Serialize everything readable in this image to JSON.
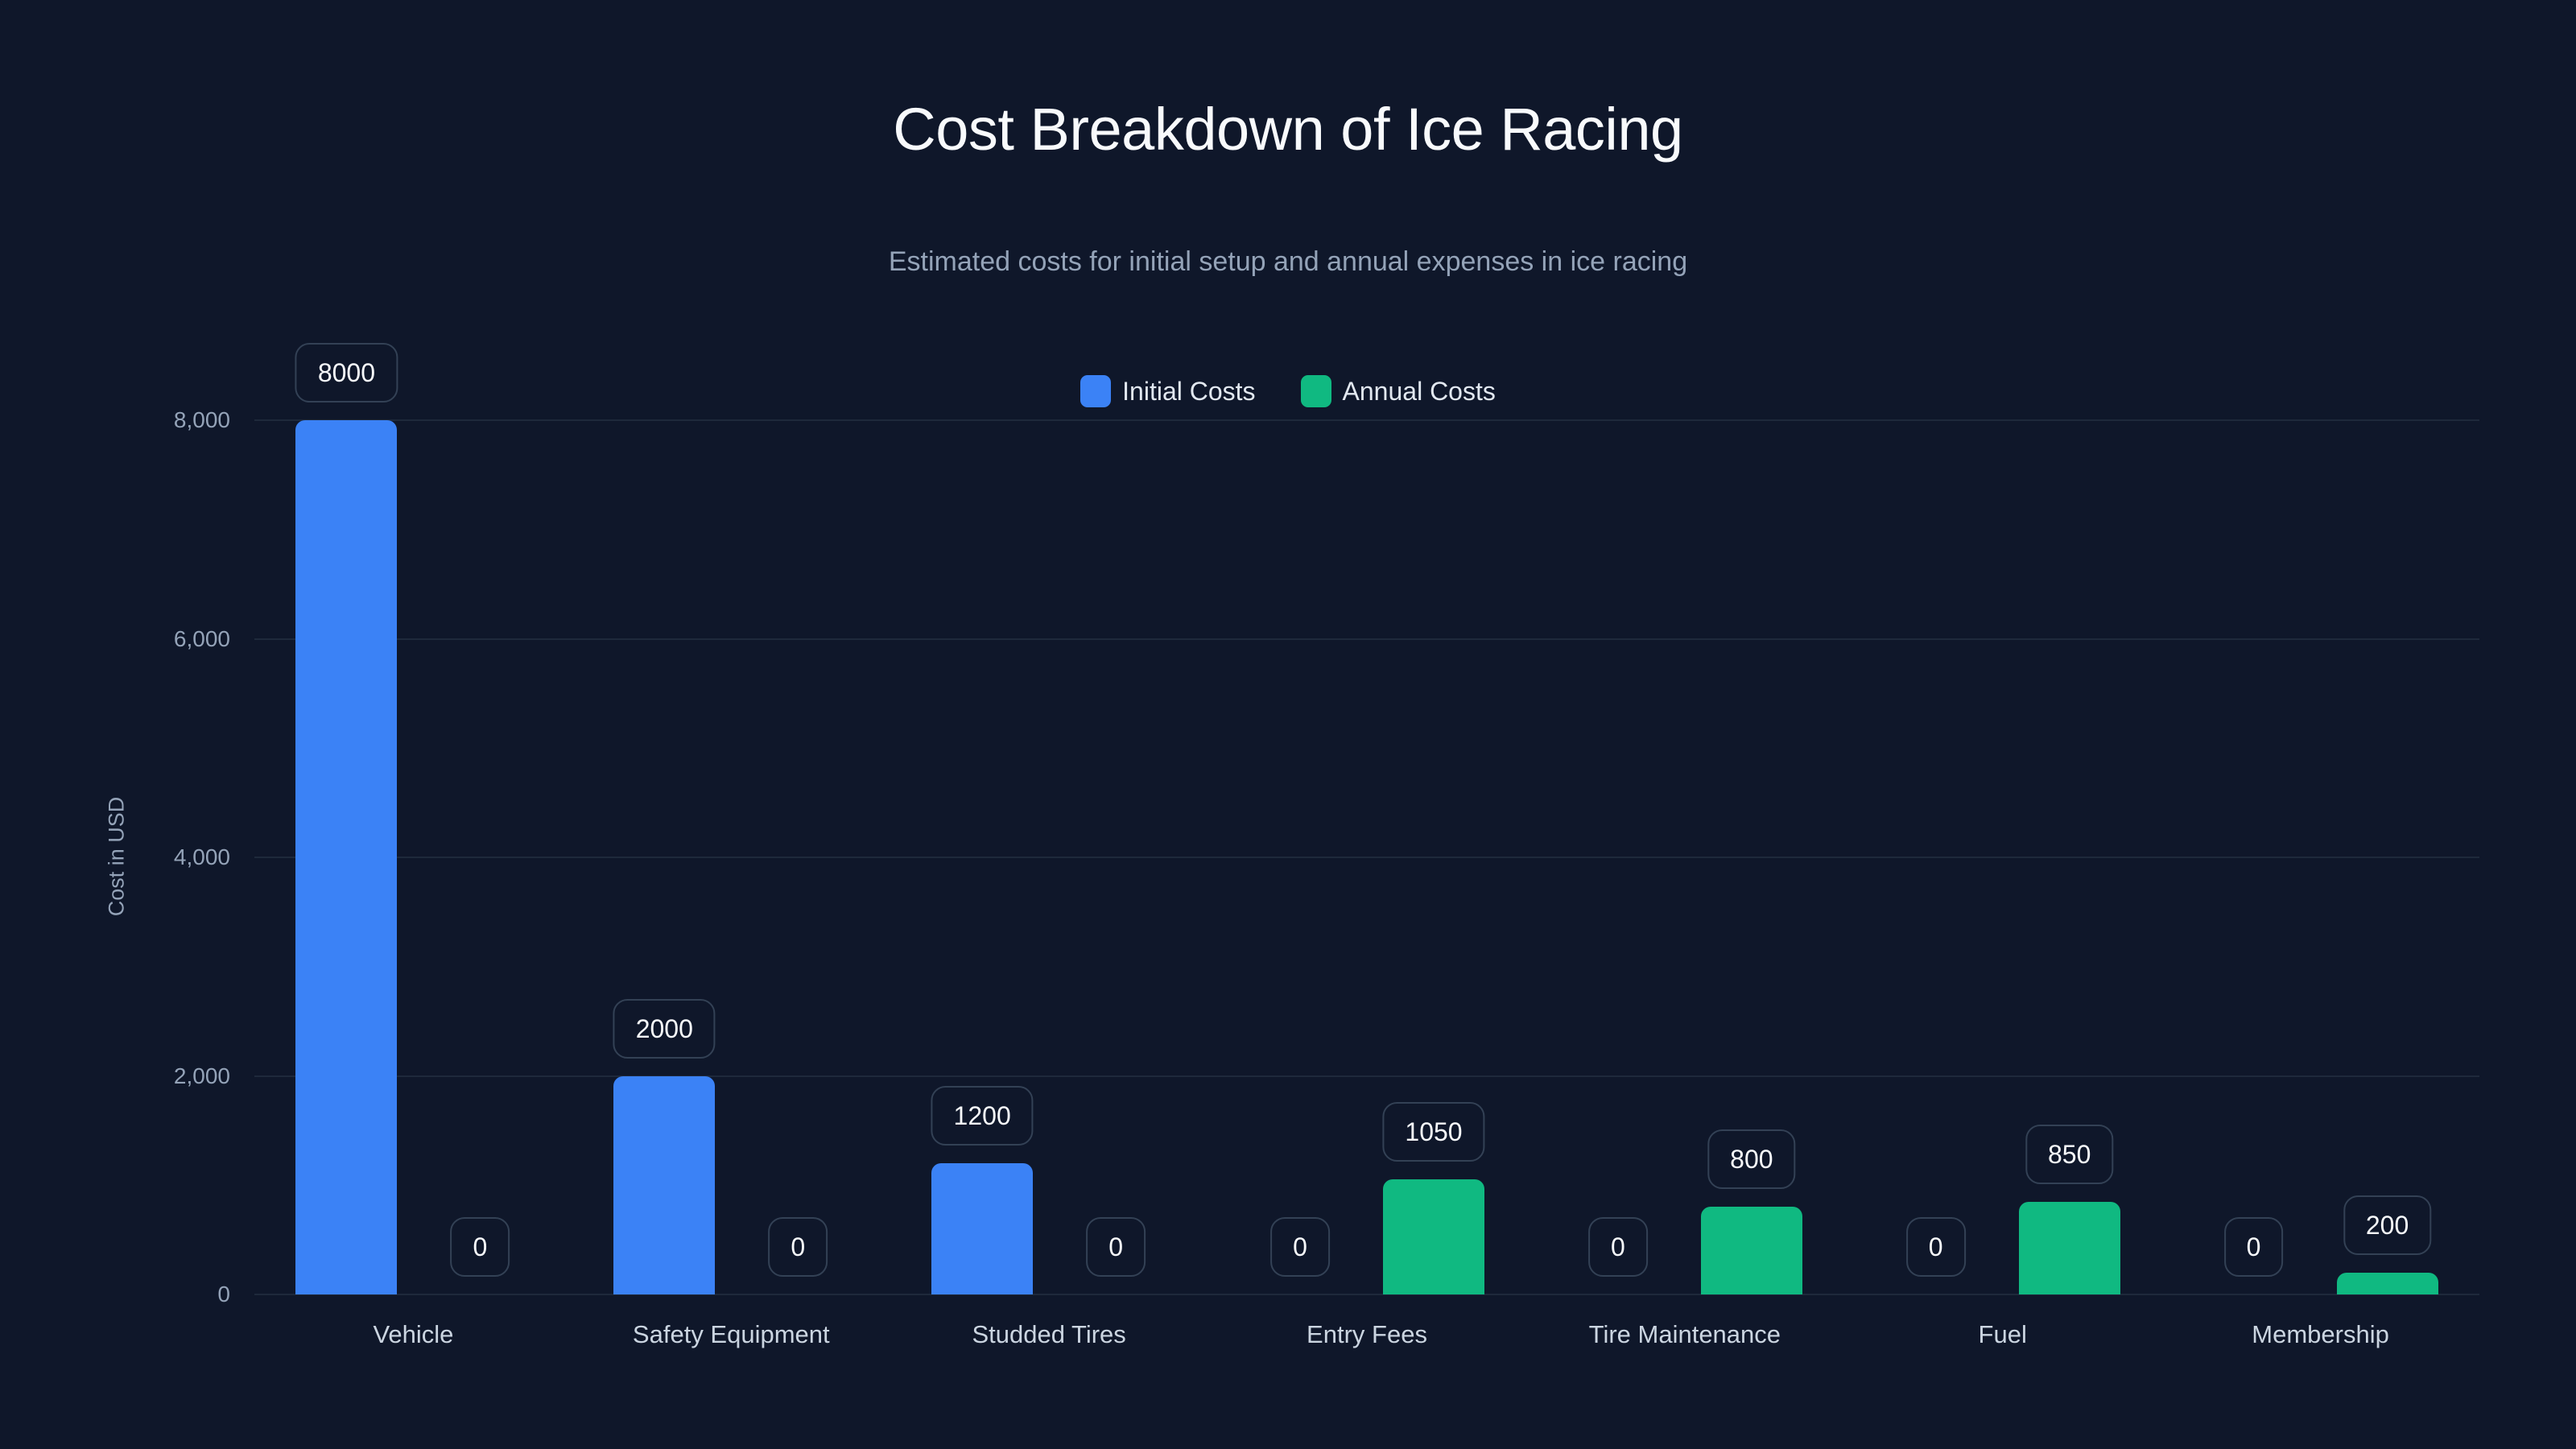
{
  "header": {
    "title": "Cost Breakdown of Ice Racing",
    "subtitle": "Estimated costs for initial setup and annual expenses in ice racing"
  },
  "legend": [
    {
      "label": "Initial Costs",
      "color": "#3b82f6"
    },
    {
      "label": "Annual Costs",
      "color": "#10b981"
    }
  ],
  "axis": {
    "ylabel": "Cost in USD",
    "yticks": [
      "0",
      "2,000",
      "4,000",
      "6,000",
      "8,000"
    ]
  },
  "categories": [
    "Vehicle",
    "Safety Equipment",
    "Studded Tires",
    "Entry Fees",
    "Tire Maintenance",
    "Fuel",
    "Membership"
  ],
  "bar_labels": {
    "initial": [
      "8000",
      "2000",
      "1200",
      "0",
      "0",
      "0",
      "0"
    ],
    "annual": [
      "0",
      "0",
      "0",
      "1050",
      "800",
      "850",
      "200"
    ]
  },
  "chart_data": {
    "type": "bar",
    "title": "Cost Breakdown of Ice Racing",
    "subtitle": "Estimated costs for initial setup and annual expenses in ice racing",
    "xlabel": "",
    "ylabel": "Cost in USD",
    "ylim": [
      0,
      8000
    ],
    "yticks": [
      0,
      2000,
      4000,
      6000,
      8000
    ],
    "grid": true,
    "legend_position": "top-center",
    "categories": [
      "Vehicle",
      "Safety Equipment",
      "Studded Tires",
      "Entry Fees",
      "Tire Maintenance",
      "Fuel",
      "Membership"
    ],
    "series": [
      {
        "name": "Initial Costs",
        "color": "#3b82f6",
        "values": [
          8000,
          2000,
          1200,
          0,
          0,
          0,
          0
        ]
      },
      {
        "name": "Annual Costs",
        "color": "#10b981",
        "values": [
          0,
          0,
          0,
          1050,
          800,
          850,
          200
        ]
      }
    ]
  }
}
